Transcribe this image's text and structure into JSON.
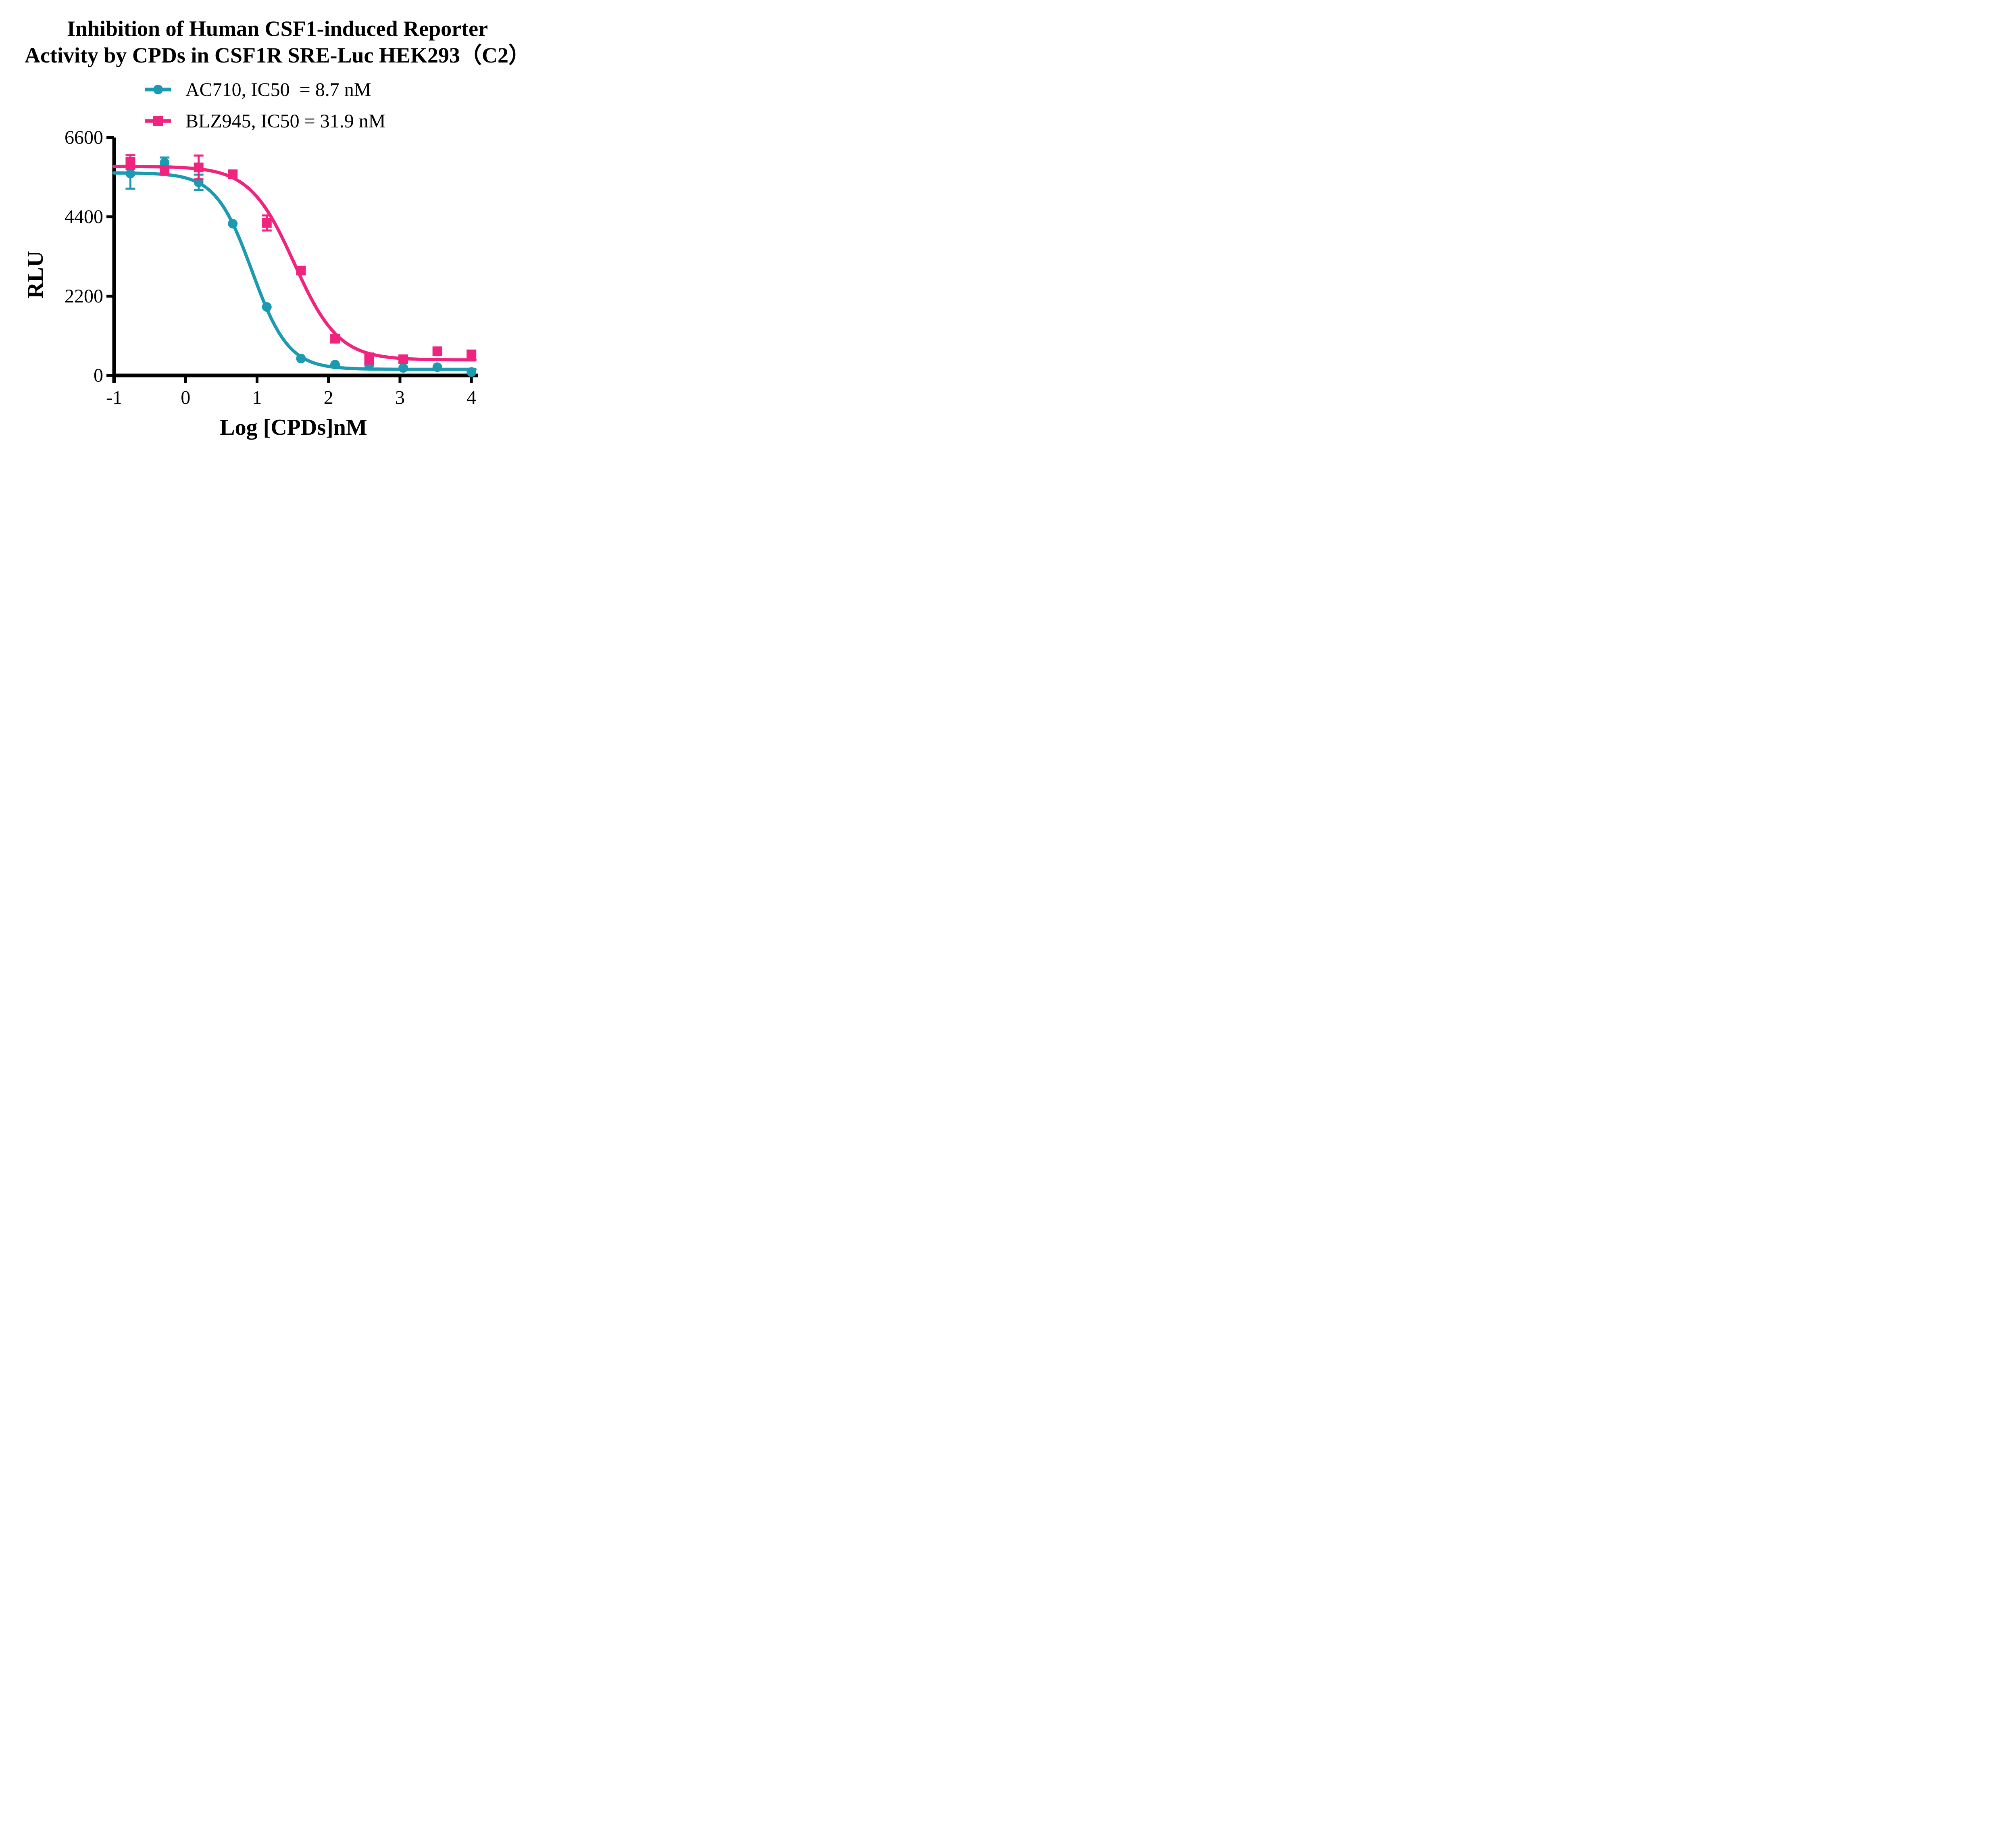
{
  "chart_data": {
    "type": "line",
    "title_line1": "Inhibition of Human CSF1-induced Reporter",
    "title_line2": "Activity by CPDs in CSF1R SRE-Luc HEK293（C2）",
    "xlabel": "Log [CPDs]nM",
    "ylabel": "RLU",
    "xlim": [
      -1,
      4
    ],
    "ylim": [
      0,
      6600
    ],
    "x_ticks": [
      0,
      1,
      2,
      3,
      4
    ],
    "x_tick_labels_all": [
      "-1",
      "0",
      "1",
      "2",
      "3",
      "4"
    ],
    "x_tick_positions_all": [
      -1,
      0,
      1,
      2,
      3,
      4
    ],
    "y_ticks": [
      0,
      2200,
      4400,
      6600
    ],
    "y_tick_labels": [
      "0",
      "2200",
      "4400",
      "6600"
    ],
    "grid": false,
    "legend_position": "top-center",
    "axis_color": "#000000",
    "background_color": "#ffffff",
    "series": [
      {
        "name": "AC710",
        "legend_label": "AC710, IC50  = 8.7 nM",
        "ic50_nM": 8.7,
        "marker": "circle",
        "color": "#1B9AB2",
        "x": [
          -0.772,
          -0.294,
          0.183,
          0.66,
          1.137,
          1.615,
          2.092,
          2.569,
          3.046,
          3.523,
          4.0
        ],
        "y": [
          5600,
          5900,
          5360,
          4210,
          1900,
          470,
          300,
          290,
          210,
          230,
          95
        ],
        "yerr": [
          420,
          145,
          210,
          0,
          0,
          0,
          0,
          0,
          0,
          0,
          0
        ],
        "fit": {
          "top": 5620,
          "bottom": 170,
          "logIC50": 0.93,
          "hill": 1.7
        }
      },
      {
        "name": "BLZ945",
        "legend_label": "BLZ945, IC50 = 31.9 nM",
        "ic50_nM": 31.9,
        "marker": "square",
        "color": "#F0247E",
        "x": [
          -0.772,
          -0.294,
          0.183,
          0.66,
          1.137,
          1.615,
          2.092,
          2.569,
          3.046,
          3.523,
          4.0
        ],
        "y": [
          5920,
          5680,
          5770,
          5580,
          4230,
          2910,
          1020,
          470,
          450,
          670,
          585
        ],
        "yerr": [
          190,
          0,
          330,
          0,
          210,
          0,
          0,
          140,
          0,
          0,
          0
        ],
        "fit": {
          "top": 5800,
          "bottom": 430,
          "logIC50": 1.52,
          "hill": 1.4
        }
      }
    ]
  }
}
